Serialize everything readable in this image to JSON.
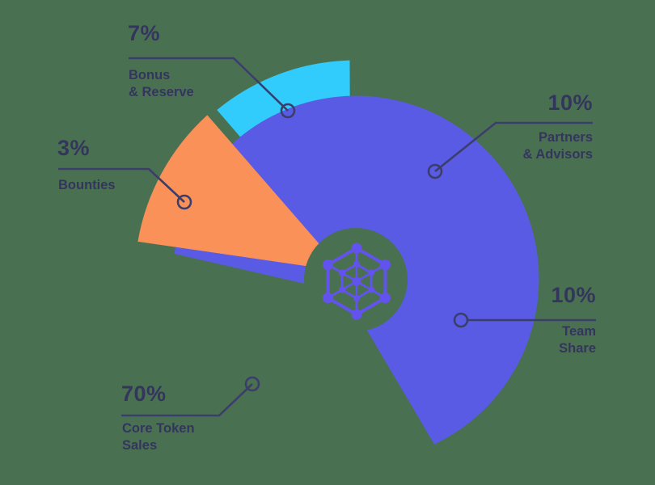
{
  "background_color": "#4a7052",
  "text_color": "#34355d",
  "leader_line_color": "#3b3e6a",
  "logo_color": "#6353ee",
  "center_icon": "hexagon-network-logo",
  "chart_data": {
    "type": "pie",
    "style": "exploded-donut-infographic",
    "unit": "%",
    "legend_position": "callout-labels",
    "center": [
      440,
      345
    ],
    "hub_radius": 64,
    "slices": [
      {
        "id": "bonus",
        "value": 7,
        "value_label": "7%",
        "label": "Bonus\n& Reserve",
        "color": "#31ccfb",
        "geometry": {
          "a1": 129.3,
          "a2": 91.7,
          "r": 270,
          "apex": [
            433,
            326
          ]
        }
      },
      {
        "id": "partners",
        "value": 10,
        "value_label": "10%",
        "label": "Partners\n& Advisors",
        "color": "#5a56dd",
        "geometry": {
          "a1": 88.7,
          "a2": 21.5,
          "r": 213,
          "apex": [
            449,
            333
          ]
        }
      },
      {
        "id": "team",
        "value": 10,
        "value_label": "10%",
        "label": "Team\nShare",
        "color": "#31ccfb",
        "geometry": {
          "a1": 16.8,
          "a2": -58,
          "r": 183,
          "apex": [
            478,
            402
          ]
        }
      },
      {
        "id": "core",
        "value": 70,
        "value_label": "70%",
        "label": "Core Token\nSales",
        "color": "#5a5be4",
        "geometry": {
          "a1": 172,
          "a2": -64.5,
          "r": 226,
          "apex": [
            427,
            362
          ]
        }
      },
      {
        "id": "bounties",
        "value": 3,
        "value_label": "3%",
        "label": "Bounties",
        "color": "#f99158",
        "geometry": {
          "a1": 170.2,
          "a2": 132.3,
          "r": 273,
          "apex": [
            423,
            335
          ]
        }
      }
    ]
  }
}
